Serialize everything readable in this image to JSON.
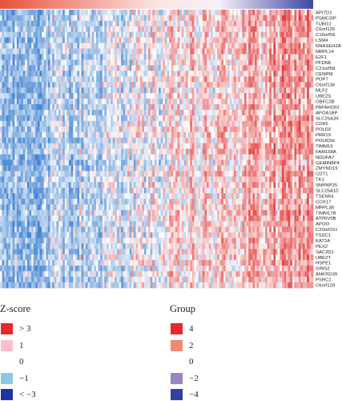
{
  "chart_data": {
    "type": "heatmap",
    "title": "",
    "xlabel": "",
    "ylabel": "",
    "rows": [
      "APITD1",
      "PSMC3IP",
      "TUBG1",
      "C6orf125",
      "C16orf59",
      "LSM4",
      "RNASEH2A",
      "MRPL14",
      "E2F1",
      "PFDN6",
      "C21orf58",
      "CENPM",
      "POP7",
      "C6orf136",
      "MLF2",
      "UBE2S",
      "OBFC2B",
      "PAFAH1B3",
      "APOA1BP",
      "SLC25A39",
      "CDK5",
      "POLD2",
      "PRR19",
      "POLR2H",
      "TIMM16",
      "FAM158A",
      "NDUFA7",
      "GEMIN8P4",
      "ZMYND19",
      "CDT1",
      "TK1",
      "SNRNP25",
      "SLC25A10",
      "TSEN54",
      "COX17",
      "MRPL38",
      "TIMM17B",
      "ATP6V0B",
      "APOO",
      "C20orf151",
      "TSSC1",
      "KAT2A",
      "PEX2",
      "SAC3D1",
      "UBE2T",
      "HSPE1",
      "GINS2",
      "ANKRD39",
      "PSRC1",
      "C6orf129"
    ],
    "n_samples": 150,
    "value_pattern": "z-scores increase from left (blue, about -3) to right (red, about +3) across samples",
    "top_annotation": {
      "name": "Group",
      "gradient": "red (4) on the left to blue (-4) on the right"
    }
  },
  "legends": {
    "zscore": {
      "title": "Z-score",
      "items": [
        {
          "label": "> 3",
          "color": "#e8272a"
        },
        {
          "label": "1",
          "color": "#f9bfcc"
        },
        {
          "label": "0",
          "color": "#ffffff"
        },
        {
          "label": "−1",
          "color": "#87c9e6"
        },
        {
          "label": "< −3",
          "color": "#1e33a3"
        }
      ]
    },
    "group": {
      "title": "Group",
      "items": [
        {
          "label": "4",
          "color": "#e8272a"
        },
        {
          "label": "2",
          "color": "#f08a6f"
        },
        {
          "label": "0",
          "color": "#ffffff"
        },
        {
          "label": "−2",
          "color": "#9b86c5"
        },
        {
          "label": "−4",
          "color": "#33409d"
        }
      ]
    }
  },
  "colors": {
    "heat_low": "#3a7fd0",
    "heat_mid": "#ffffff",
    "heat_high": "#e23c3a",
    "anno_left": "#e8523a",
    "anno_right": "#3d47a3"
  }
}
